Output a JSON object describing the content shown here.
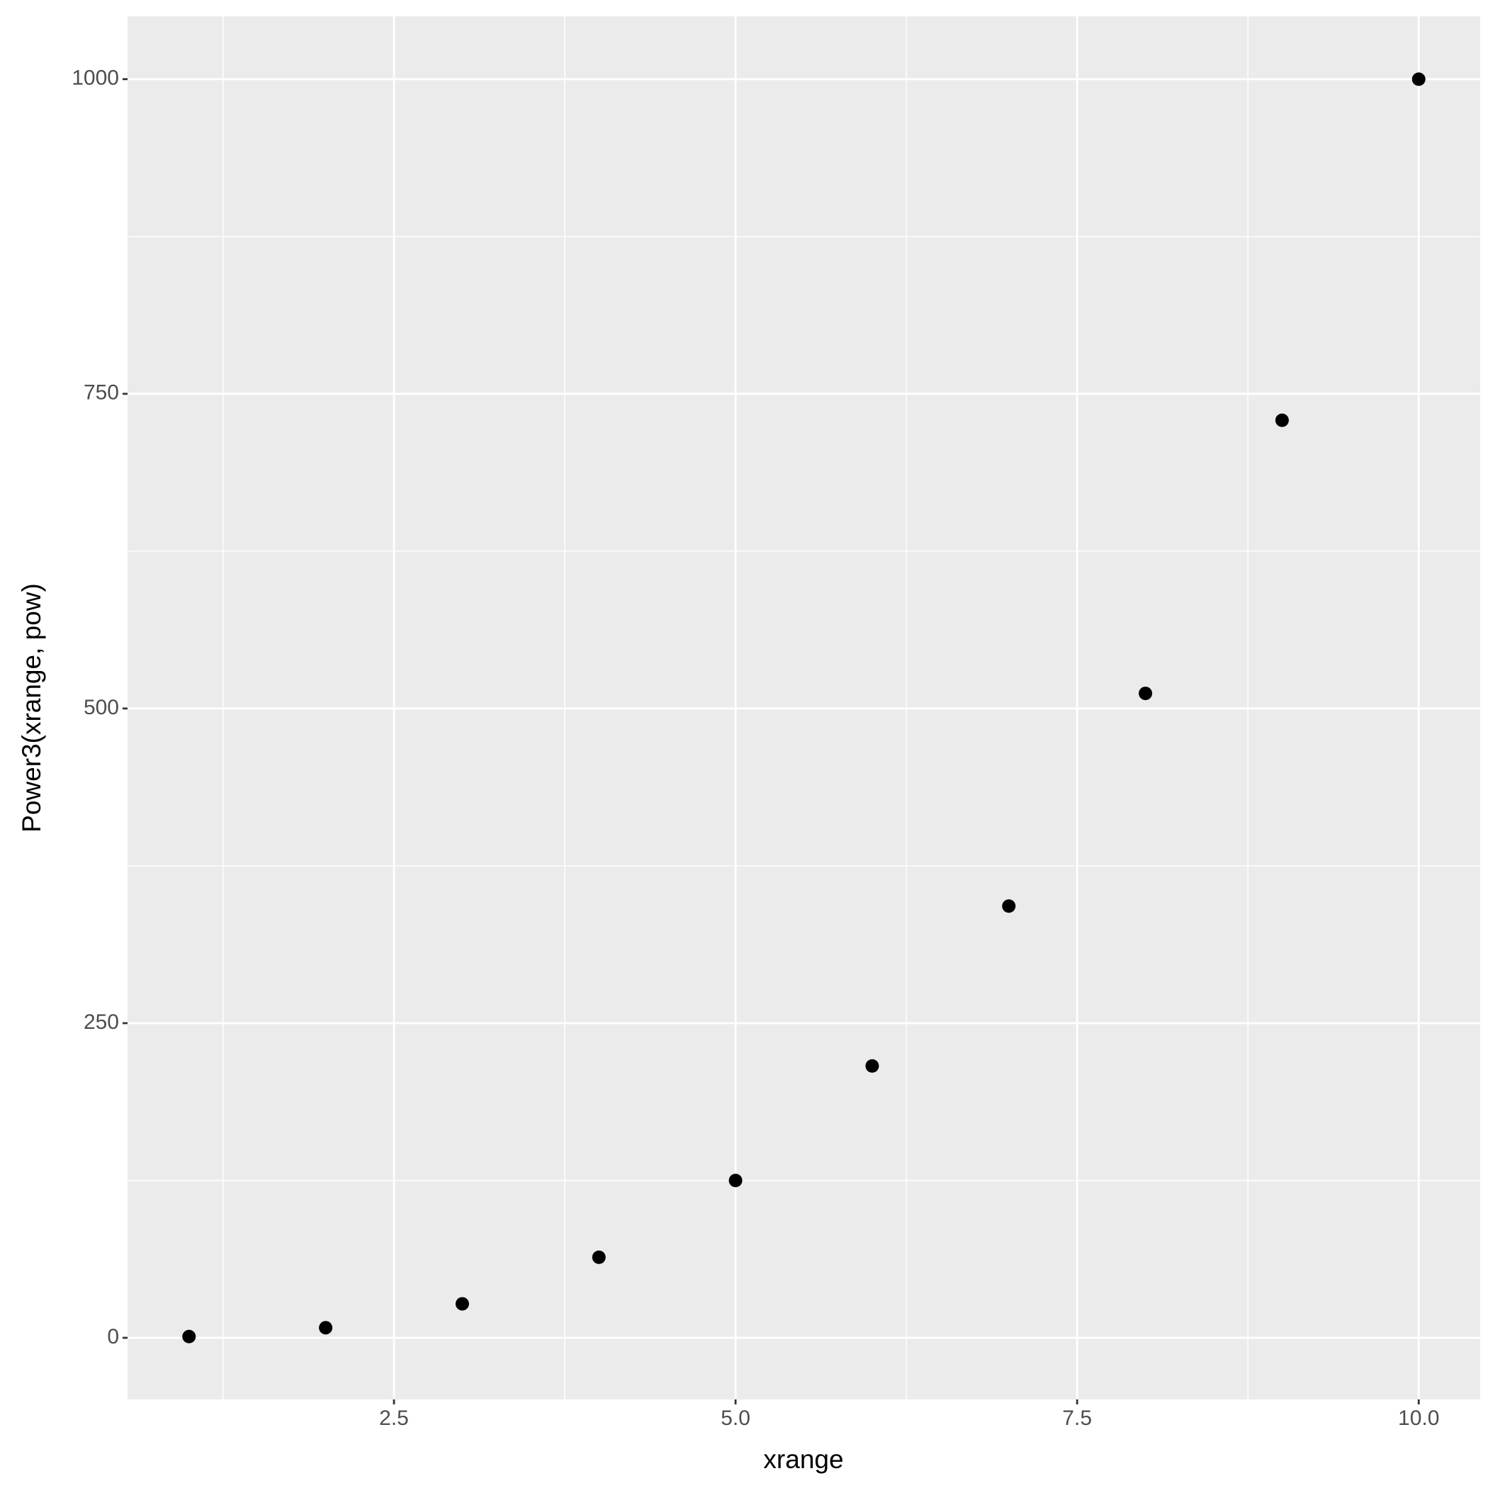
{
  "chart_data": {
    "type": "scatter",
    "x_label": "xrange",
    "y_label": "Power3(xrange, pow)",
    "x": [
      1,
      2,
      3,
      4,
      5,
      6,
      7,
      8,
      9,
      10
    ],
    "values": [
      1,
      8,
      27,
      64,
      125,
      216,
      343,
      512,
      729,
      1000
    ],
    "color": "#000000",
    "xlim": [
      0.55,
      10.45
    ],
    "ylim": [
      -48.95,
      1049.95
    ],
    "xticks": [
      {
        "value": 2.5,
        "label": "2.5"
      },
      {
        "value": 5,
        "label": "5.0"
      },
      {
        "value": 7.5,
        "label": "7.5"
      },
      {
        "value": 10,
        "label": "10.0"
      }
    ],
    "yticks": [
      0,
      250,
      500,
      750,
      1000
    ],
    "xminorticks": [
      1.25,
      3.75,
      6.25,
      8.75
    ],
    "yminorticks": [
      125,
      375,
      625,
      875
    ],
    "grid": true
  }
}
